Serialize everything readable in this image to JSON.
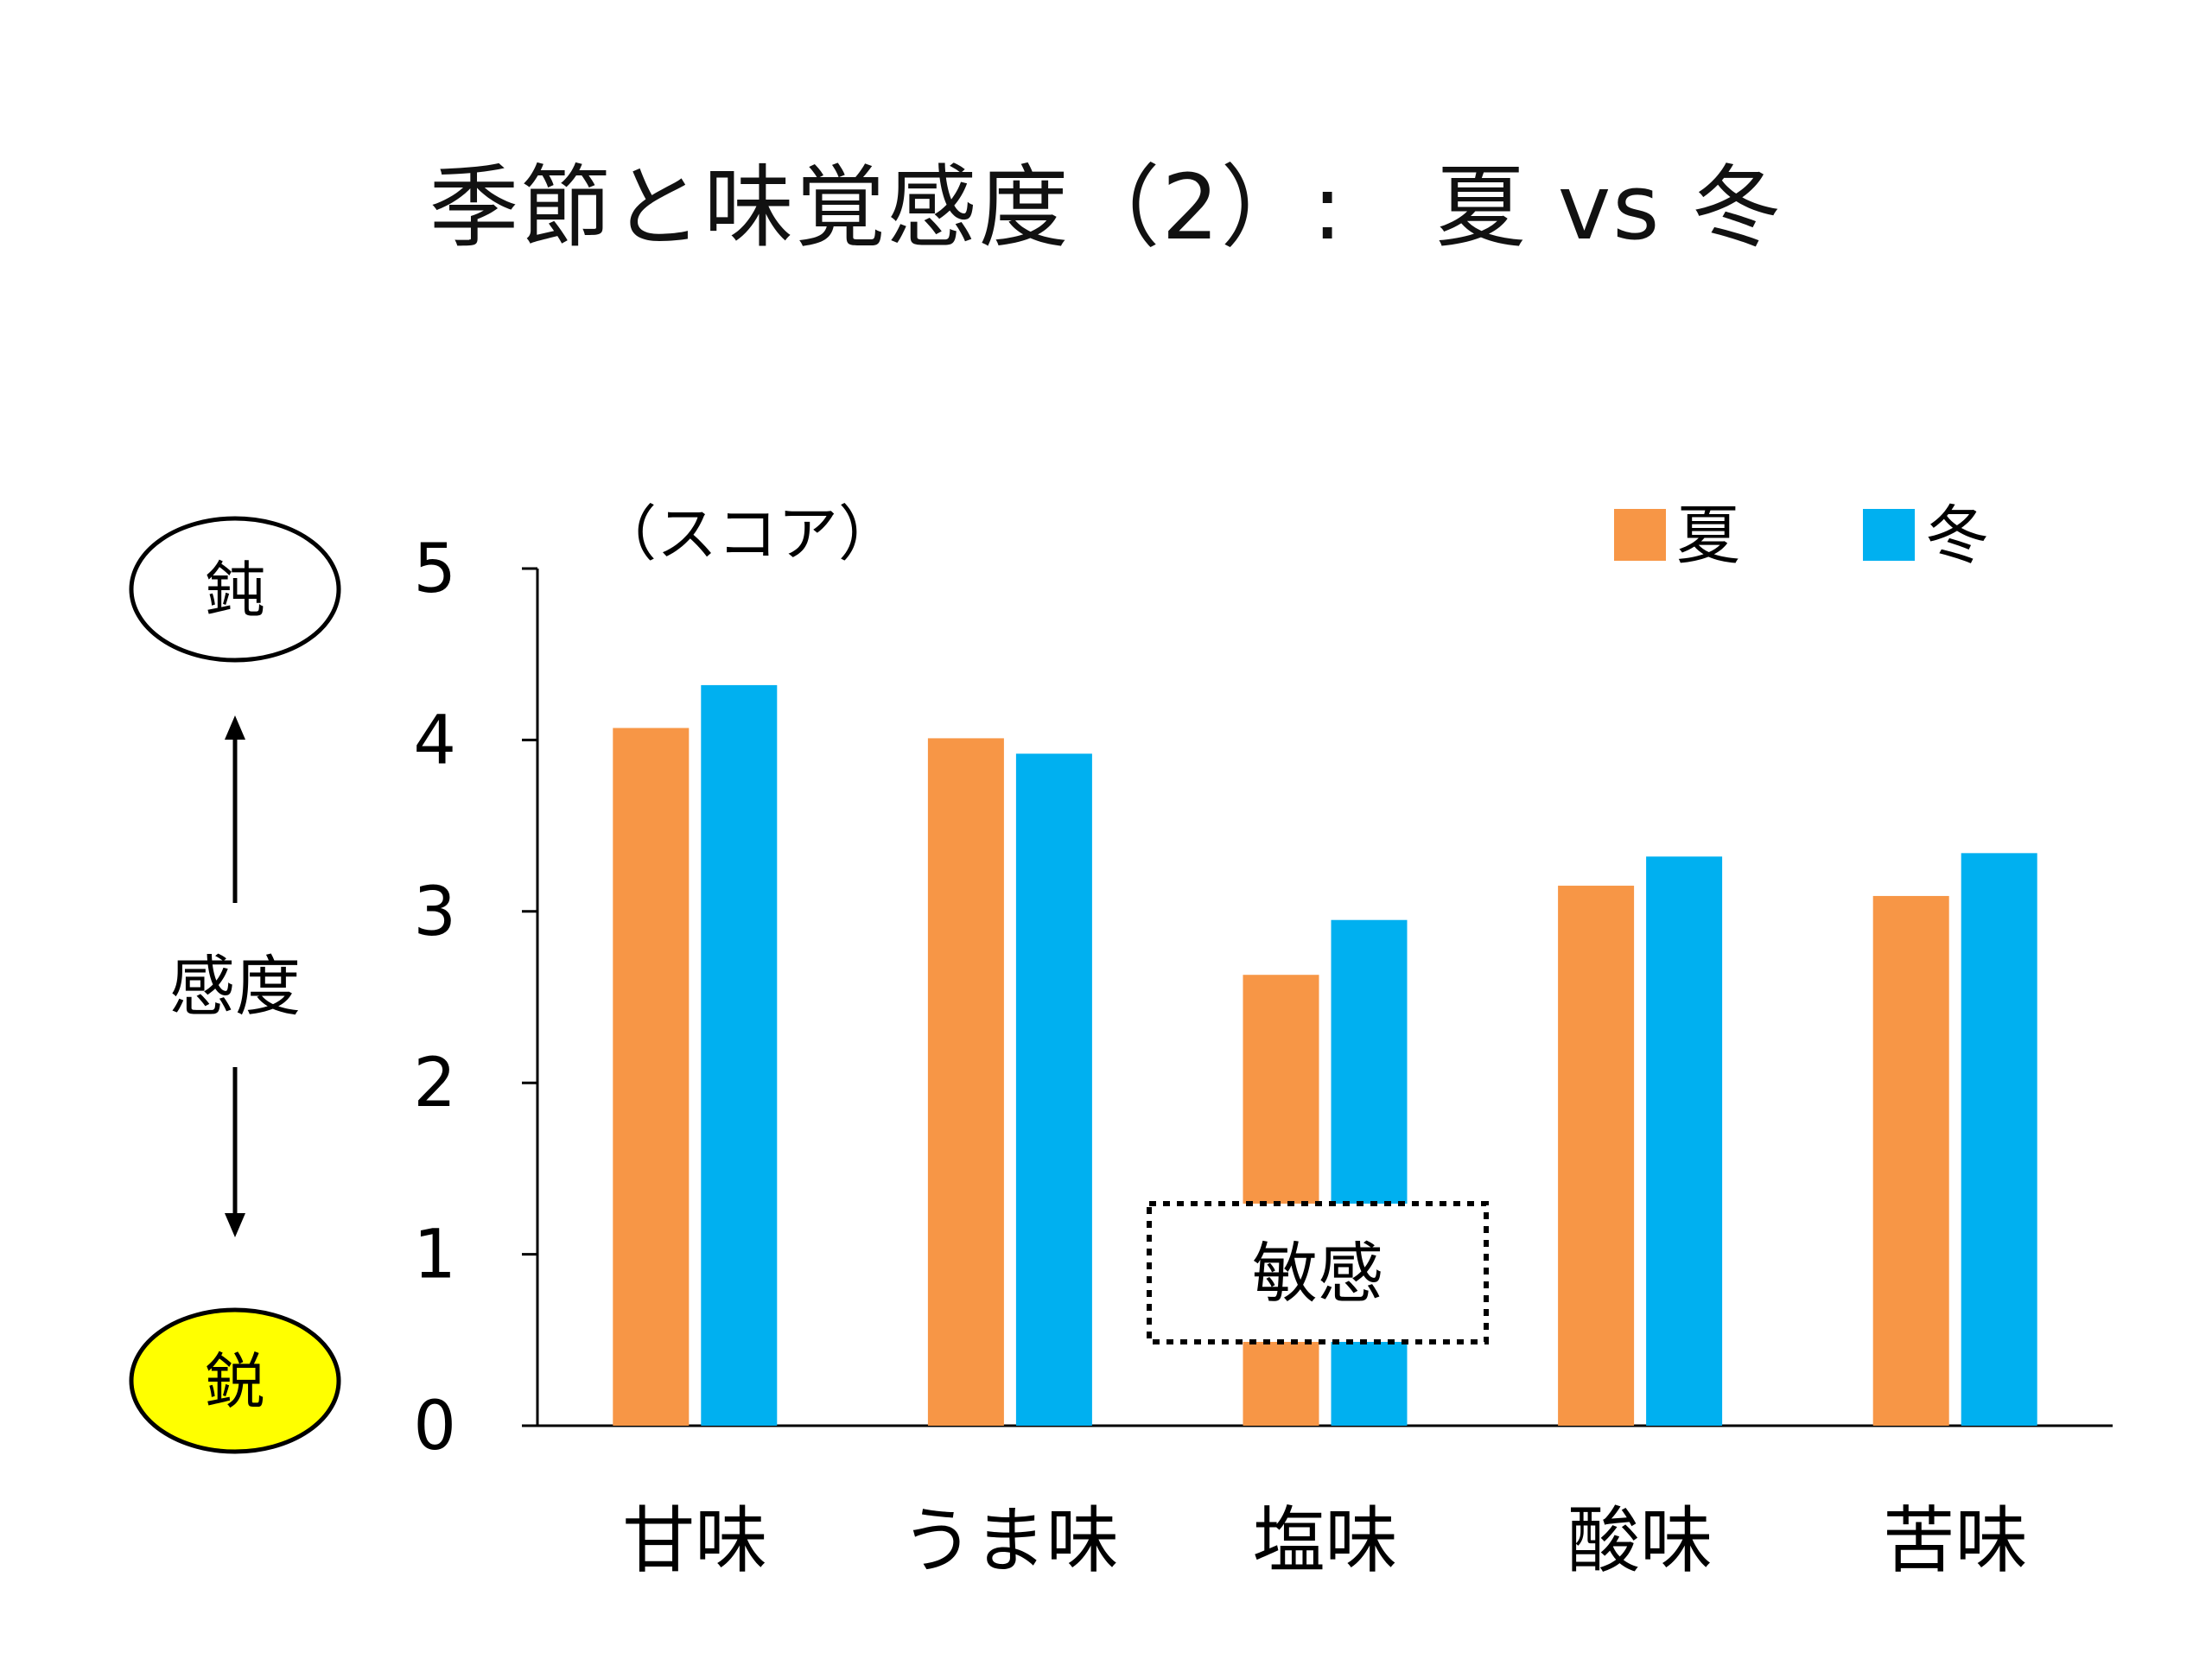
{
  "title": "季節と味覚感度（2）:　夏 vs 冬",
  "chart_data": {
    "type": "bar",
    "title": "季節と味覚感度（2）:　夏 vs 冬",
    "ylabel": "（スコア）",
    "xlabel": "",
    "ylim": [
      0,
      5
    ],
    "yticks": [
      0,
      1,
      2,
      3,
      4,
      5
    ],
    "categories": [
      "甘味",
      "うま味",
      "塩味",
      "酸味",
      "苦味"
    ],
    "series": [
      {
        "name": "夏",
        "color": "#F79646",
        "values": [
          4.07,
          4.01,
          2.63,
          3.15,
          3.09
        ]
      },
      {
        "name": "冬",
        "color": "#00B0F0",
        "values": [
          4.32,
          3.92,
          2.95,
          3.32,
          3.34
        ]
      }
    ],
    "legend_position": "top-right",
    "annotation": "敏感"
  },
  "scale": {
    "label": "感度",
    "top_label": "鈍",
    "bottom_label": "鋭",
    "bottom_color": "#FFFF00"
  }
}
